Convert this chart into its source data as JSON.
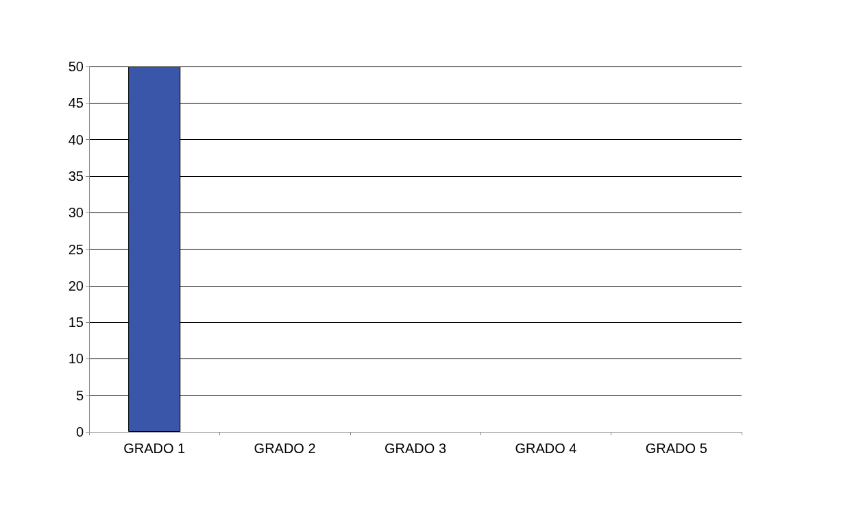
{
  "chart_data": {
    "type": "bar",
    "categories": [
      "GRADO 1",
      "GRADO 2",
      "GRADO 3",
      "GRADO 4",
      "GRADO 5"
    ],
    "values": [
      50,
      0,
      0,
      0,
      0
    ],
    "color": "#3a56a8",
    "ylim": [
      0,
      50
    ],
    "yticks": [
      0,
      5,
      10,
      15,
      20,
      25,
      30,
      35,
      40,
      45,
      50
    ],
    "grid": "y"
  }
}
